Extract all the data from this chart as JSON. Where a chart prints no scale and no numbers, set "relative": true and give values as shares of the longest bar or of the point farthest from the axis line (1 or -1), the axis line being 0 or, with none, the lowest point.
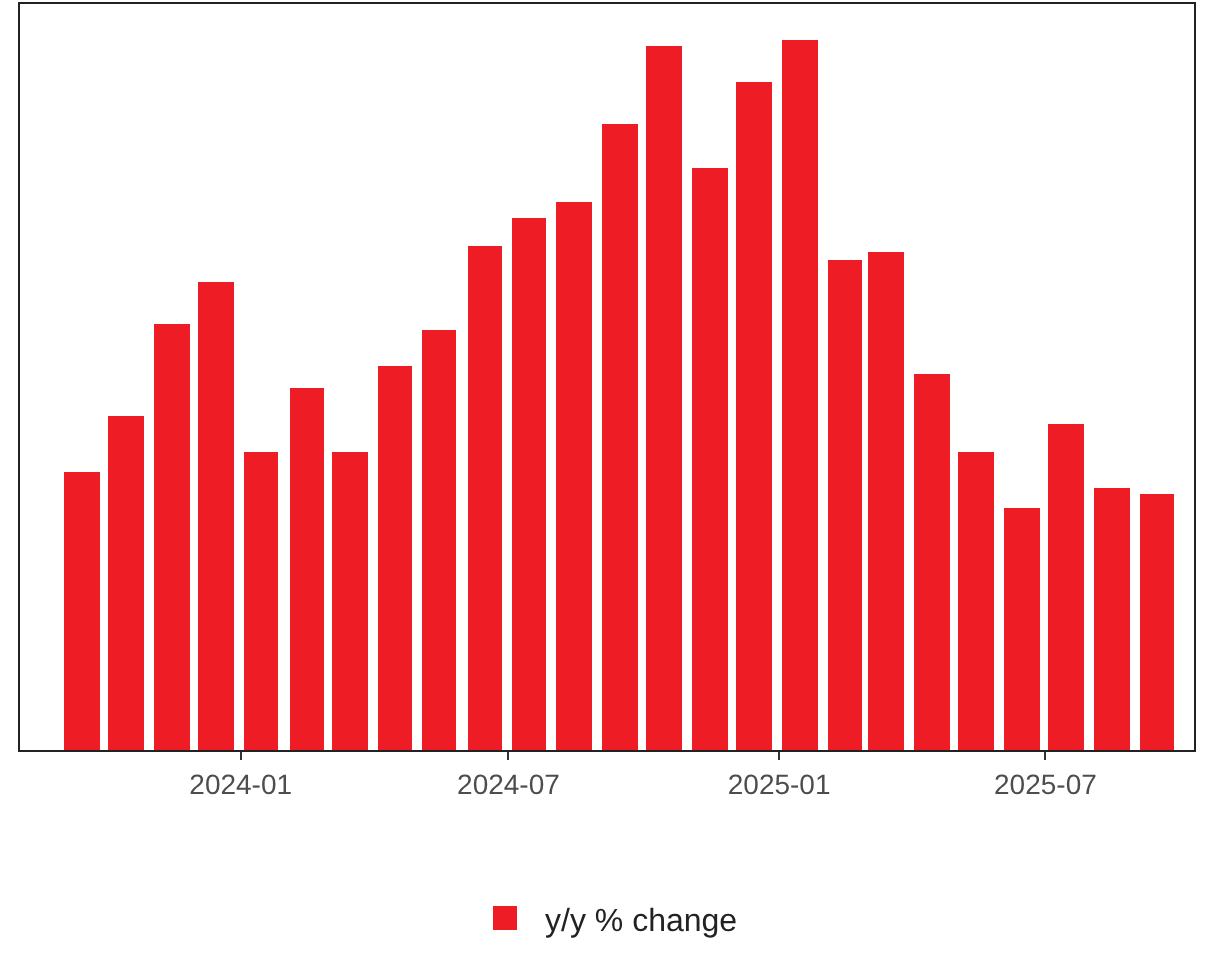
{
  "chart_data": {
    "type": "bar",
    "relative": true,
    "x": [
      "2023-09-15",
      "2023-10-15",
      "2023-11-15",
      "2023-12-15",
      "2024-01-15",
      "2024-02-15",
      "2024-03-15",
      "2024-04-15",
      "2024-05-15",
      "2024-06-15",
      "2024-07-15",
      "2024-08-15",
      "2024-09-15",
      "2024-10-15",
      "2024-11-15",
      "2024-12-15",
      "2025-01-15",
      "2025-02-15",
      "2025-03-15",
      "2025-04-15",
      "2025-05-15",
      "2025-06-15",
      "2025-07-15",
      "2025-08-15",
      "2025-09-15"
    ],
    "series": [
      {
        "name": "y/y % change",
        "color": "#ee1c25",
        "values": [
          0.39,
          0.47,
          0.6,
          0.66,
          0.42,
          0.51,
          0.42,
          0.54,
          0.59,
          0.71,
          0.75,
          0.77,
          0.88,
          0.99,
          0.82,
          0.94,
          1.0,
          0.69,
          0.7,
          0.53,
          0.42,
          0.34,
          0.46,
          0.37,
          0.36
        ]
      }
    ],
    "xlim": [
      "2023-08-04",
      "2025-10-10"
    ],
    "xticks": [
      {
        "value": "2024-01-01",
        "label": "2024-01"
      },
      {
        "value": "2024-07-01",
        "label": "2024-07"
      },
      {
        "value": "2025-01-01",
        "label": "2025-01"
      },
      {
        "value": "2025-07-01",
        "label": "2025-07"
      }
    ],
    "tick_labels": "x",
    "legend": "bottom"
  }
}
